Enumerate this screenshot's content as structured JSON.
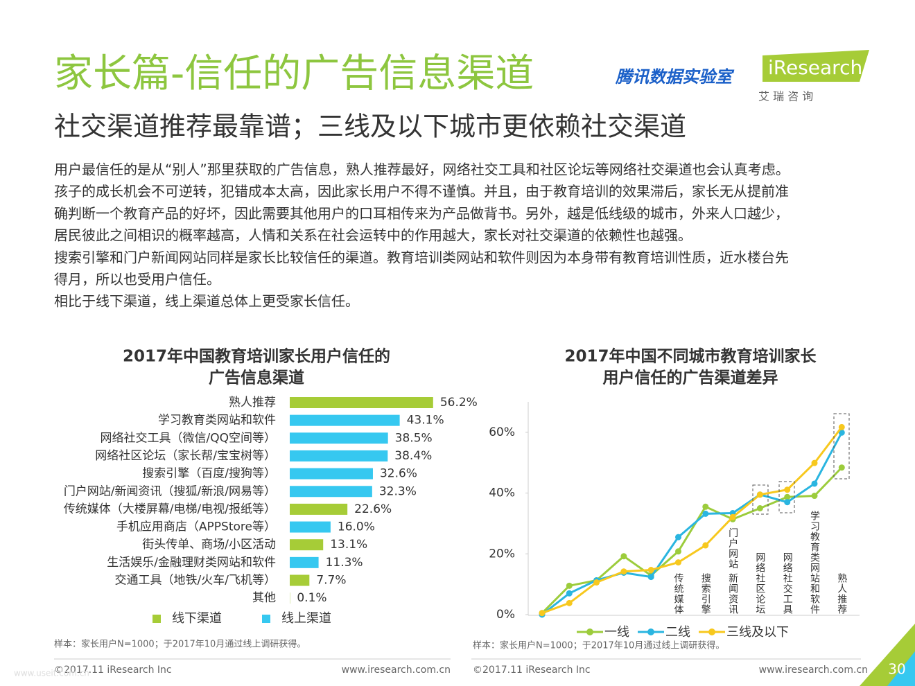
{
  "header": {
    "title": "家长篇-信任的广告信息渠道",
    "subtitle": "社交渠道推荐最靠谱；三线及以下城市更依赖社交渠道",
    "logo_tencent": "腾讯数据实验室",
    "logo_iresearch": "iResearch",
    "logo_cn": "艾 瑞 咨 询"
  },
  "body": {
    "lines": [
      "用户最信任的是从“别人”那里获取的广告信息，熟人推荐最好，网络社交工具和社区论坛等网络社交渠道也会认真考虑。",
      "孩子的成长机会不可逆转，犯错成本太高，因此家长用户不得不谨慎。并且，由于教育培训的效果滞后，家长无从提前准",
      "确判断一个教育产品的好坏，因此需要其他用户的口耳相传来为产品做背书。另外，越是低线级的城市，外来人口越少，",
      "居民彼此之间相识的概率越高，人情和关系在社会运转中的作用越大，家长对社交渠道的依赖性也越强。",
      "搜索引擎和门户新闻网站同样是家长比较信任的渠道。教育培训类网站和软件则因为本身带有教育培训性质，近水楼台先",
      "得月，所以也受用户信任。",
      "相比于线下渠道，线上渠道总体上更受家长信任。"
    ]
  },
  "chart_data": [
    {
      "type": "hbar",
      "title": [
        "2017年中国教育培训家长用户信任的",
        "广告信息渠道"
      ],
      "categories": [
        "熟人推荐",
        "学习教育类网站和软件",
        "网络社交工具（微信/QQ空间等）",
        "网络社区论坛（家长帮/宝宝树等）",
        "搜索引擎（百度/搜狗等）",
        "门户网站/新闻资讯（搜狐/新浪/网易等）",
        "传统媒体（大楼屏幕/电梯/电视/报纸等）",
        "手机应用商店（APPStore等）",
        "街头传单、商场/小区活动",
        "生活娱乐/金融理财类网站和软件",
        "交通工具（地铁/火车/飞机等）",
        "其他"
      ],
      "series": [
        {
          "name": "线下渠道",
          "color": "#a6cc37",
          "values": [
            56.2,
            null,
            null,
            null,
            null,
            null,
            22.6,
            null,
            13.1,
            null,
            7.7,
            0.1
          ],
          "value_labels": [
            "56.2%",
            null,
            null,
            null,
            null,
            null,
            "22.6%",
            null,
            "13.1%",
            null,
            "7.7%",
            "0.1%"
          ]
        },
        {
          "name": "线上渠道",
          "color": "#36c8f0",
          "values": [
            null,
            43.1,
            38.5,
            38.4,
            32.6,
            32.3,
            null,
            16.0,
            null,
            11.3,
            null,
            null
          ],
          "value_labels": [
            null,
            "43.1%",
            "38.5%",
            "38.4%",
            "32.6%",
            "32.3%",
            null,
            "16.0%",
            null,
            "11.3%",
            null,
            null
          ]
        }
      ],
      "note": "样本：家长用户N=1000；于2017年10月通过线上调研获得。"
    },
    {
      "type": "line",
      "title": [
        "2017年中国不同城市教育培训家长",
        "用户信任的广告渠道差异"
      ],
      "categories": [
        null,
        null,
        null,
        null,
        null,
        "传统媒体",
        "搜索引擎",
        "门户网站 新闻资讯",
        "网络社区论坛",
        "网络社交工具",
        "学习教育类网站和软件",
        "熟人推荐"
      ],
      "ylim": [
        0,
        70
      ],
      "yticks": [
        {
          "value": 0,
          "label": "0%"
        },
        {
          "value": 20,
          "label": "20%"
        },
        {
          "value": 40,
          "label": "40%"
        },
        {
          "value": 60,
          "label": "60%"
        }
      ],
      "series": [
        {
          "name": "一线",
          "color": "#9ccc3c",
          "values": [
            0.5,
            9.5,
            11.3,
            19.2,
            12.9,
            20.8,
            35.5,
            31.4,
            35.0,
            38.7,
            39.1,
            48.4
          ]
        },
        {
          "name": "二线",
          "color": "#2ab5e0",
          "values": [
            0,
            7.0,
            11.3,
            13.8,
            12.4,
            25.5,
            33.2,
            33.4,
            39.5,
            37.0,
            43.1,
            59.9
          ]
        },
        {
          "name": "三线及以下",
          "color": "#f7c81e",
          "values": [
            0.5,
            3.8,
            10.6,
            14.2,
            14.7,
            17.2,
            22.8,
            32.1,
            39.5,
            41.1,
            49.9,
            61.7
          ]
        }
      ],
      "note": "样本：家长用户N=1000；于2017年10月通过线上调研获得。"
    }
  ],
  "footer": [
    {
      "copyright": "©2017.11 iResearch Inc",
      "url": "www.iresearch.com.cn"
    },
    {
      "copyright": "©2017.11 iResearch Inc",
      "url": "www.iresearch.com.cn"
    }
  ],
  "page_number": "30",
  "watermark": "www.useit.com.cn"
}
